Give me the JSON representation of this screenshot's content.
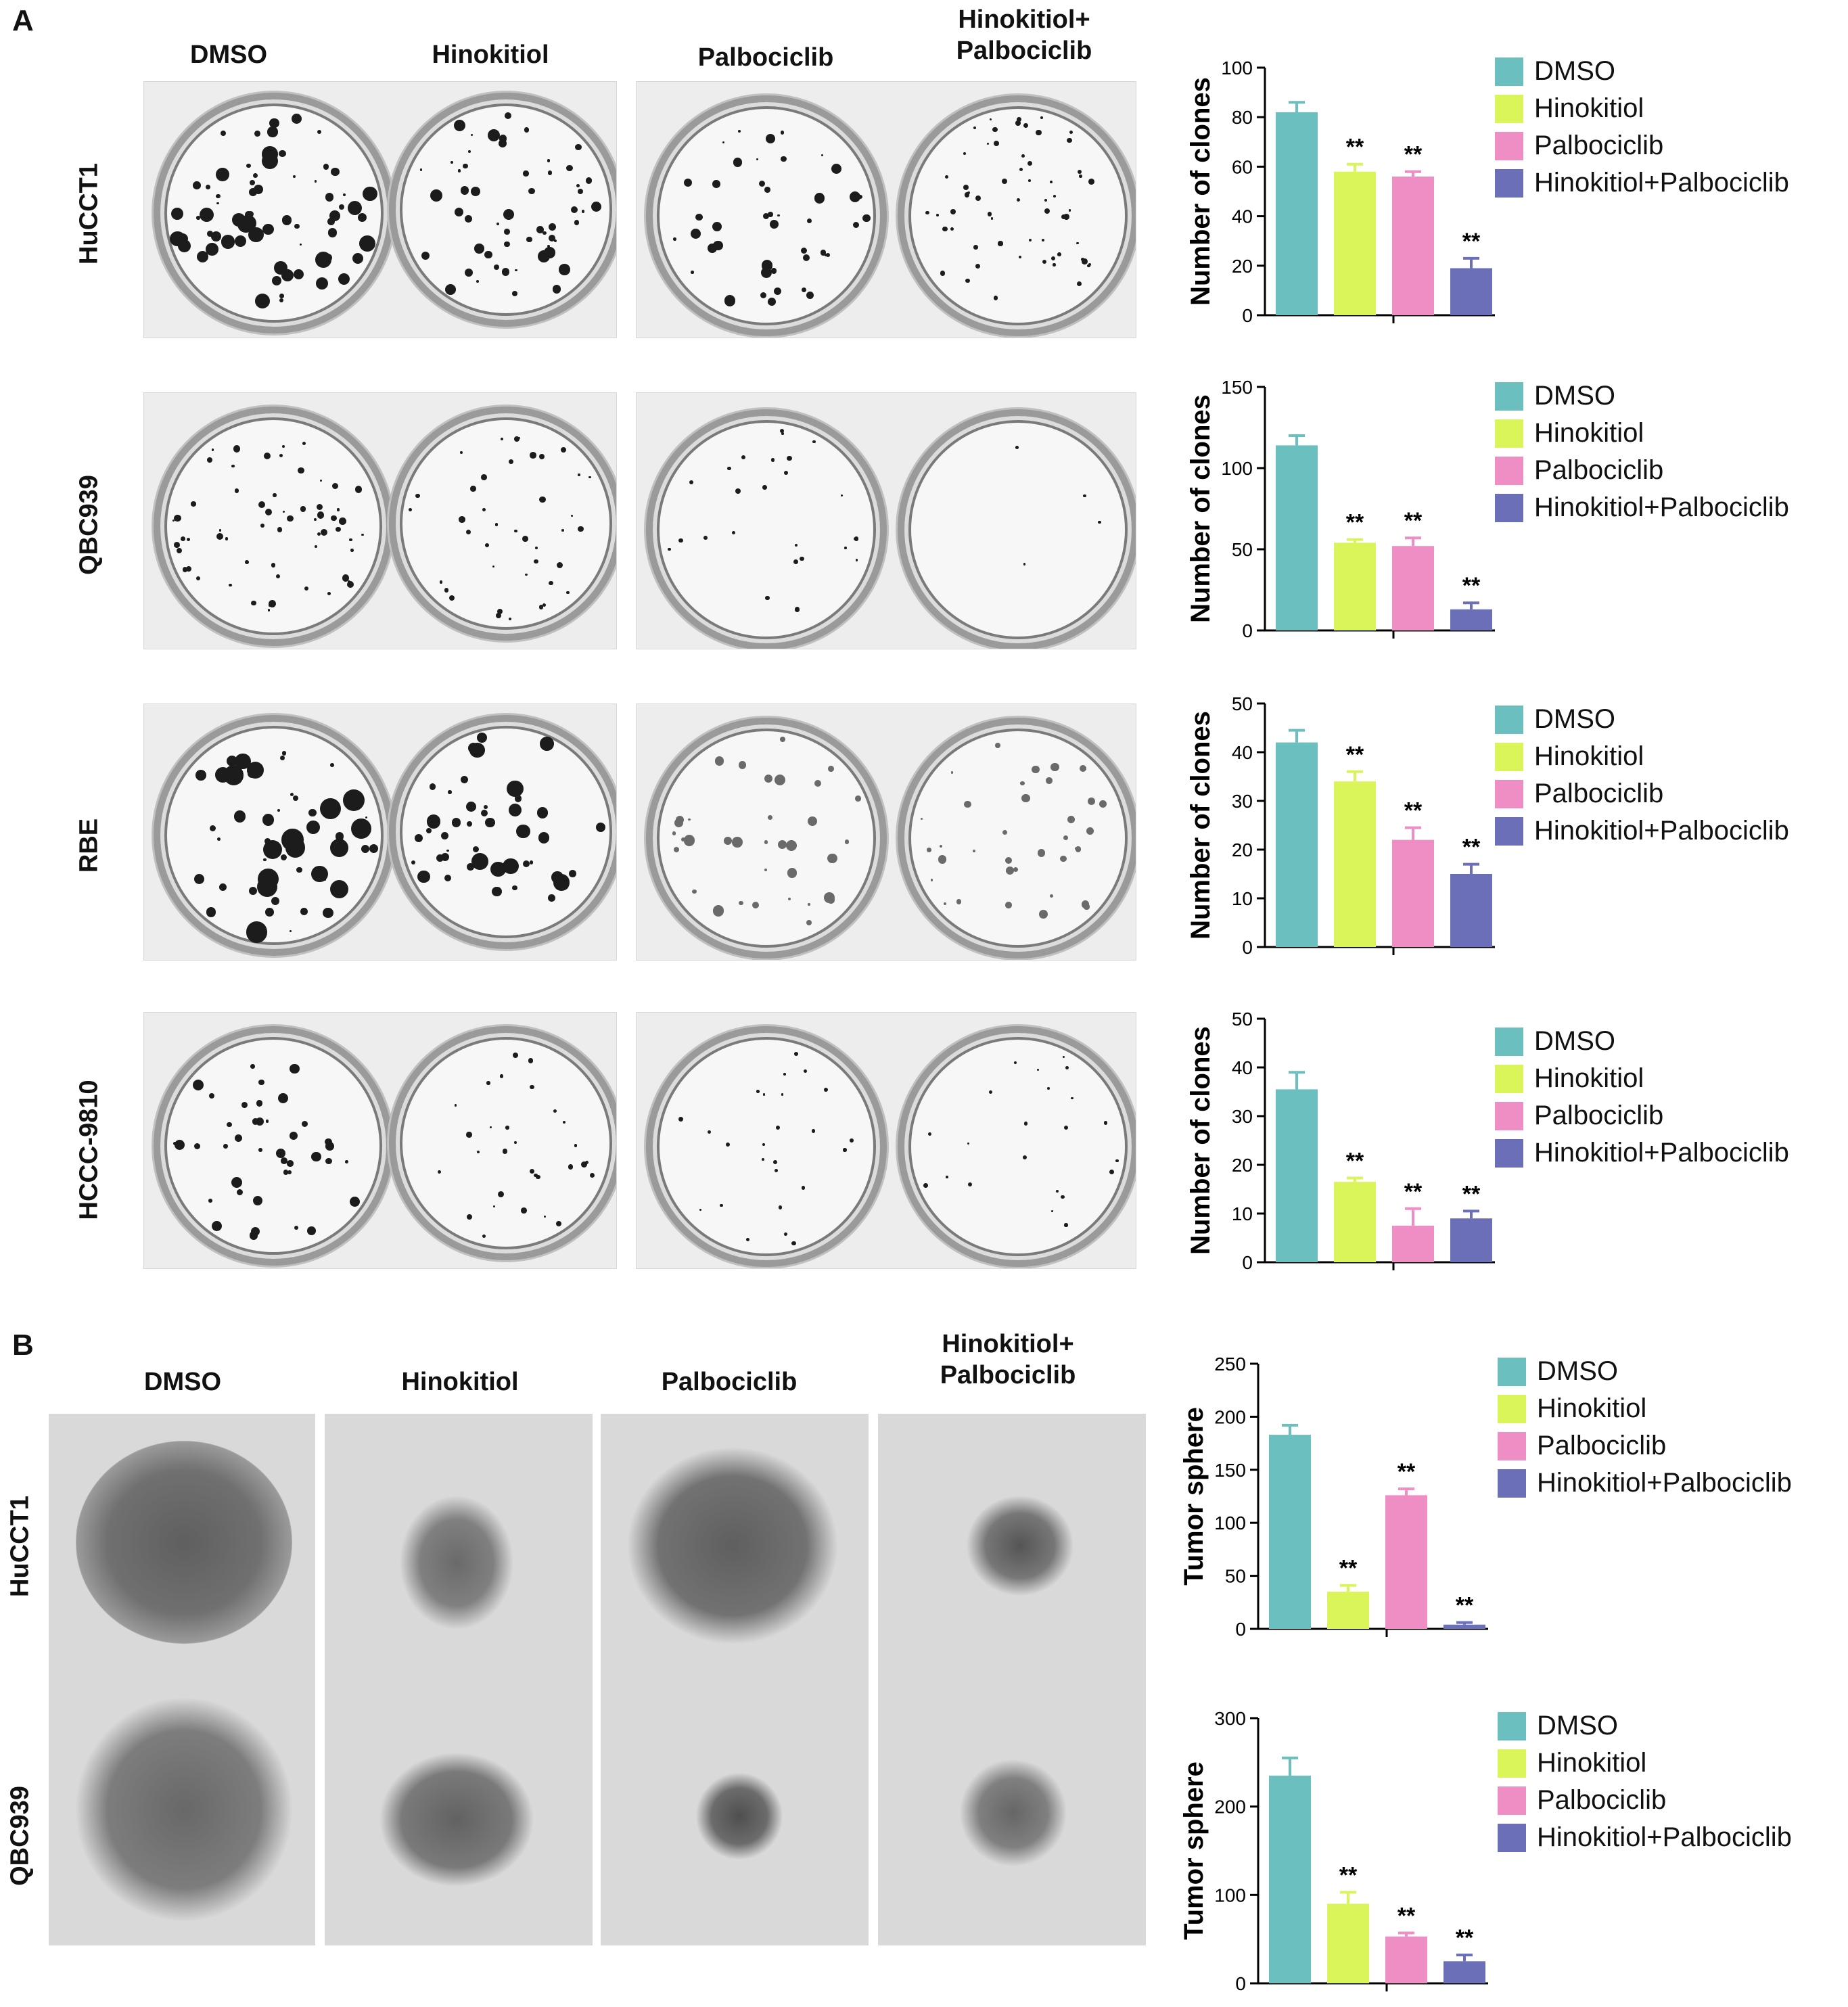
{
  "panels": [
    {
      "letter": "A",
      "column_labels": [
        "DMSO",
        "Hinokitiol",
        "Palbociclib",
        "Hinokitiol+\nPalbociclib"
      ],
      "row_labels": [
        "HuCCT1",
        "QBC939",
        "RBE",
        "HCCC-9810"
      ]
    },
    {
      "letter": "B",
      "column_labels": [
        "DMSO",
        "Hinokitiol",
        "Palbociclib",
        "Hinokitiol+\nPalbociclib"
      ],
      "row_labels": [
        "HuCCT1",
        "QBC939"
      ]
    }
  ],
  "legend": {
    "labels": [
      "DMSO",
      "Hinokitiol",
      "Palbociclib",
      "Hinokitiol+Palbociclib"
    ],
    "colors": [
      "#6bbfbf",
      "#d9f55a",
      "#ee8ec4",
      "#6b6fb8"
    ]
  },
  "significance_mark": "**",
  "chart_data": [
    {
      "type": "bar",
      "panel": "A",
      "row": "HuCCT1",
      "ylabel": "Number of clones",
      "categories": [
        "DMSO",
        "Hinokitiol",
        "Palbociclib",
        "Hinokitiol+Palbociclib"
      ],
      "values": [
        82,
        58,
        56,
        19
      ],
      "errors": [
        4,
        3,
        2,
        4
      ],
      "ylim": [
        0,
        100
      ],
      "yticks": [
        0,
        20,
        40,
        60,
        80,
        100
      ],
      "significance": [
        "",
        "**",
        "**",
        "**"
      ]
    },
    {
      "type": "bar",
      "panel": "A",
      "row": "QBC939",
      "ylabel": "Number of clones",
      "categories": [
        "DMSO",
        "Hinokitiol",
        "Palbociclib",
        "Hinokitiol+Palbociclib"
      ],
      "values": [
        114,
        54,
        52,
        13
      ],
      "errors": [
        6,
        2,
        5,
        4
      ],
      "ylim": [
        0,
        150
      ],
      "yticks": [
        0,
        50,
        100,
        150
      ],
      "significance": [
        "",
        "**",
        "**",
        "**"
      ]
    },
    {
      "type": "bar",
      "panel": "A",
      "row": "RBE",
      "ylabel": "Number of clones",
      "categories": [
        "DMSO",
        "Hinokitiol",
        "Palbociclib",
        "Hinokitiol+Palbociclib"
      ],
      "values": [
        42,
        34,
        22,
        15
      ],
      "errors": [
        2.5,
        2,
        2.5,
        2
      ],
      "ylim": [
        0,
        50
      ],
      "yticks": [
        0,
        10,
        20,
        30,
        40,
        50
      ],
      "significance": [
        "",
        "**",
        "**",
        "**"
      ]
    },
    {
      "type": "bar",
      "panel": "A",
      "row": "HCCC-9810",
      "ylabel": "Number of clones",
      "categories": [
        "DMSO",
        "Hinokitiol",
        "Palbociclib",
        "Hinokitiol+Palbociclib"
      ],
      "values": [
        35.5,
        16.5,
        7.5,
        9
      ],
      "errors": [
        3.5,
        0.8,
        3.5,
        1.5
      ],
      "ylim": [
        0,
        50
      ],
      "yticks": [
        0,
        10,
        20,
        30,
        40,
        50
      ],
      "significance": [
        "",
        "**",
        "**",
        "**"
      ]
    },
    {
      "type": "bar",
      "panel": "B",
      "row": "HuCCT1",
      "ylabel": "Tumor sphere",
      "categories": [
        "DMSO",
        "Hinokitiol",
        "Palbociclib",
        "Hinokitiol+Palbociclib"
      ],
      "values": [
        183,
        35,
        126,
        4
      ],
      "errors": [
        9,
        6,
        6,
        2
      ],
      "ylim": [
        0,
        250
      ],
      "yticks": [
        0,
        50,
        100,
        150,
        200,
        250
      ],
      "significance": [
        "",
        "**",
        "**",
        "**"
      ]
    },
    {
      "type": "bar",
      "panel": "B",
      "row": "QBC939",
      "ylabel": "Tumor sphere",
      "categories": [
        "DMSO",
        "Hinokitiol",
        "Palbociclib",
        "Hinokitiol+Palbociclib"
      ],
      "values": [
        235,
        90,
        53,
        25
      ],
      "errors": [
        20,
        13,
        4,
        7
      ],
      "ylim": [
        0,
        300
      ],
      "yticks": [
        0,
        100,
        200,
        300
      ],
      "significance": [
        "",
        "**",
        "**",
        "**"
      ]
    }
  ]
}
